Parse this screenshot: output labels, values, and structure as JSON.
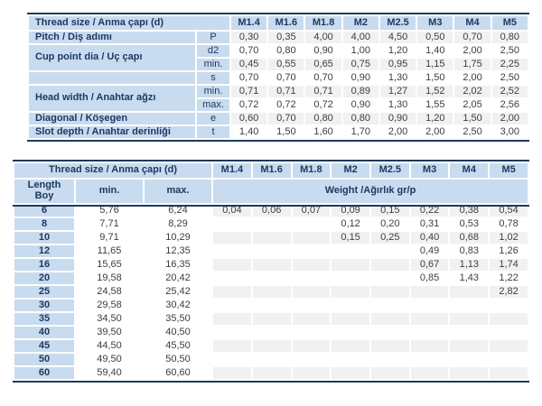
{
  "colors": {
    "header_blue": "#c9dbee",
    "stripe_gray": "#f1f1f1",
    "navy_border": "#1c3a5e",
    "navy_text": "#1a3a63",
    "value_text": "#3d3d3d"
  },
  "sizes": [
    "M1.4",
    "M1.6",
    "M1.8",
    "M2",
    "M2.5",
    "M3",
    "M4",
    "M5"
  ],
  "dimension_table": {
    "header_label": "Thread size / Anma çapı (d)",
    "rows": [
      {
        "label": "Pitch / Diş adımı",
        "rowspan": 1,
        "sub": "P",
        "values": [
          "0,30",
          "0,35",
          "4,00",
          "4,00",
          "4,50",
          "0,50",
          "0,70",
          "0,80"
        ]
      },
      {
        "label": "Cup point dia / Uç çapı",
        "rowspan": 2,
        "sub": "d2",
        "values": [
          "0,70",
          "0,80",
          "0,90",
          "1,00",
          "1,20",
          "1,40",
          "2,00",
          "2,50"
        ]
      },
      {
        "label": null,
        "sub": "min.",
        "values": [
          "0,45",
          "0,55",
          "0,65",
          "0,75",
          "0,95",
          "1,15",
          "1,75",
          "2,25"
        ]
      },
      {
        "label": "",
        "rowspan": 1,
        "sub": "s",
        "values": [
          "0,70",
          "0,70",
          "0,70",
          "0,90",
          "1,30",
          "1,50",
          "2,00",
          "2,50"
        ]
      },
      {
        "label": "Head width / Anahtar ağzı",
        "rowspan": 2,
        "sub": "min.",
        "values": [
          "0,71",
          "0,71",
          "0,71",
          "0,89",
          "1,27",
          "1,52",
          "2,02",
          "2,52"
        ]
      },
      {
        "label": null,
        "sub": "max.",
        "values": [
          "0,72",
          "0,72",
          "0,72",
          "0,90",
          "1,30",
          "1,55",
          "2,05",
          "2,56"
        ]
      },
      {
        "label": "Diagonal / Köşegen",
        "rowspan": 1,
        "sub": "e",
        "values": [
          "0,60",
          "0,70",
          "0,80",
          "0,80",
          "0,90",
          "1,20",
          "1,50",
          "2,00"
        ]
      },
      {
        "label": "Slot depth / Anahtar derinliği",
        "rowspan": 1,
        "sub": "t",
        "values": [
          "1,40",
          "1,50",
          "1,60",
          "1,70",
          "2,00",
          "2,00",
          "2,50",
          "3,00"
        ]
      }
    ]
  },
  "length_table": {
    "header_label": "Thread size / Anma çapı (d)",
    "length_label_en": "Length",
    "length_label_tr": "Boy",
    "min_label": "min.",
    "max_label": "max.",
    "weight_label": "Weight /Ağırlık gr/p",
    "rows": [
      {
        "length": "6",
        "min": "5,76",
        "max": "6,24",
        "weights": [
          "0,04",
          "0,06",
          "0,07",
          "0,09",
          "0,15",
          "0,22",
          "0,38",
          "0,54"
        ]
      },
      {
        "length": "8",
        "min": "7,71",
        "max": "8,29",
        "weights": [
          "",
          "",
          "",
          "0,12",
          "0,20",
          "0,31",
          "0,53",
          "0,78"
        ]
      },
      {
        "length": "10",
        "min": "9,71",
        "max": "10,29",
        "weights": [
          "",
          "",
          "",
          "0,15",
          "0,25",
          "0,40",
          "0,68",
          "1,02"
        ]
      },
      {
        "length": "12",
        "min": "11,65",
        "max": "12,35",
        "weights": [
          "",
          "",
          "",
          "",
          "",
          "0,49",
          "0,83",
          "1,26"
        ]
      },
      {
        "length": "16",
        "min": "15,65",
        "max": "16,35",
        "weights": [
          "",
          "",
          "",
          "",
          "",
          "0,67",
          "1,13",
          "1,74"
        ]
      },
      {
        "length": "20",
        "min": "19,58",
        "max": "20,42",
        "weights": [
          "",
          "",
          "",
          "",
          "",
          "0,85",
          "1,43",
          "1,22"
        ]
      },
      {
        "length": "25",
        "min": "24,58",
        "max": "25,42",
        "weights": [
          "",
          "",
          "",
          "",
          "",
          "",
          "",
          "2,82"
        ]
      },
      {
        "length": "30",
        "min": "29,58",
        "max": "30,42",
        "weights": [
          "",
          "",
          "",
          "",
          "",
          "",
          "",
          ""
        ]
      },
      {
        "length": "35",
        "min": "34,50",
        "max": "35,50",
        "weights": [
          "",
          "",
          "",
          "",
          "",
          "",
          "",
          ""
        ]
      },
      {
        "length": "40",
        "min": "39,50",
        "max": "40,50",
        "weights": [
          "",
          "",
          "",
          "",
          "",
          "",
          "",
          ""
        ]
      },
      {
        "length": "45",
        "min": "44,50",
        "max": "45,50",
        "weights": [
          "",
          "",
          "",
          "",
          "",
          "",
          "",
          ""
        ]
      },
      {
        "length": "50",
        "min": "49,50",
        "max": "50,50",
        "weights": [
          "",
          "",
          "",
          "",
          "",
          "",
          "",
          ""
        ]
      },
      {
        "length": "60",
        "min": "59,40",
        "max": "60,60",
        "weights": [
          "",
          "",
          "",
          "",
          "",
          "",
          "",
          ""
        ]
      }
    ]
  }
}
